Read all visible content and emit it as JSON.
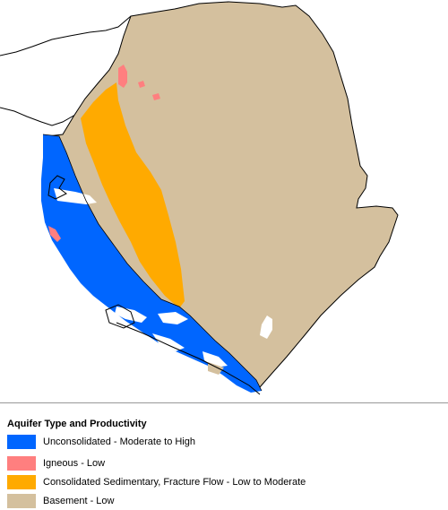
{
  "map": {
    "type": "choropleth",
    "colors": {
      "unconsolidated": "#0066FF",
      "igneous": "#FF7F7F",
      "consolidated": "#FFAA00",
      "basement": "#D4C09E",
      "outline": "#000000"
    }
  },
  "legend": {
    "title": "Aquifer Type and Productivity",
    "items": [
      {
        "label": "Unconsolidated - Moderate to High",
        "color": "#0066FF"
      },
      {
        "label": "Igneous - Low",
        "color": "#FF7F7F"
      },
      {
        "label": "Consolidated Sedimentary, Fracture Flow - Low to Moderate",
        "color": "#FFAA00"
      },
      {
        "label": "Basement - Low",
        "color": "#D4C09E"
      }
    ]
  }
}
